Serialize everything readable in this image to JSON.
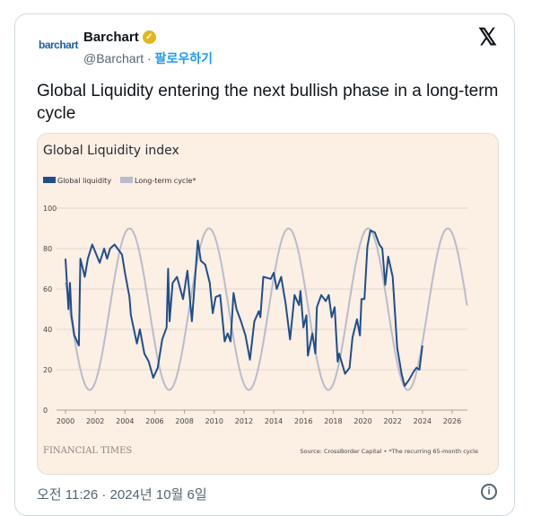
{
  "tweet": {
    "logo_text": "barchart",
    "author_name": "Barchart",
    "handle": "@Barchart",
    "separator": " · ",
    "follow_label": "팔로우하기",
    "x_logo": "𝕏",
    "text": "Global Liquidity entering the next bullish phase in a long-term cycle",
    "timestamp": "오전 11:26 · 2024년 10월 6일",
    "info_icon": "i",
    "verified_icon": "✓"
  },
  "colors": {
    "liquidity": "#1f4e8c",
    "cycle": "#b9bccb",
    "background": "#fcefe4",
    "grid": "#e2d6cc"
  },
  "chart_data": {
    "type": "line",
    "title": "Global Liquidity index",
    "legend": [
      "Global liquidity",
      "Long-term cycle*"
    ],
    "legend_placement": "top-left",
    "brand": "FINANCIAL TIMES",
    "source": "Source: CrossBorder Capital • *The recurring 65-month cycle",
    "xlim": [
      2000,
      2027
    ],
    "ylim": [
      0,
      100
    ],
    "xticks": [
      2000,
      2002,
      2004,
      2006,
      2008,
      2010,
      2012,
      2014,
      2016,
      2018,
      2020,
      2022,
      2024,
      2026
    ],
    "yticks": [
      0,
      20,
      40,
      60,
      80,
      100
    ],
    "grid": true,
    "series": [
      {
        "name": "Global liquidity",
        "x": [
          2000.0,
          2000.2,
          2000.3,
          2000.4,
          2000.6,
          2000.9,
          2001.0,
          2001.3,
          2001.5,
          2001.8,
          2002.3,
          2002.6,
          2002.8,
          2003.0,
          2003.3,
          2003.8,
          2004.0,
          2004.3,
          2004.4,
          2004.8,
          2005.0,
          2005.3,
          2005.6,
          2005.9,
          2006.2,
          2006.5,
          2006.8,
          2006.9,
          2007.0,
          2007.2,
          2007.5,
          2007.9,
          2008.2,
          2008.5,
          2008.9,
          2009.1,
          2009.4,
          2009.7,
          2009.9,
          2010.1,
          2010.4,
          2010.7,
          2010.9,
          2011.1,
          2011.3,
          2011.5,
          2011.8,
          2012.1,
          2012.4,
          2012.7,
          2013.0,
          2013.1,
          2013.3,
          2013.8,
          2014.0,
          2014.2,
          2014.5,
          2014.8,
          2015.1,
          2015.4,
          2015.7,
          2015.8,
          2016.0,
          2016.2,
          2016.3,
          2016.6,
          2016.8,
          2016.9,
          2017.2,
          2017.5,
          2017.7,
          2017.9,
          2018.1,
          2018.3,
          2018.4,
          2018.8,
          2019.1,
          2019.3,
          2019.6,
          2019.8,
          2019.9,
          2020.1,
          2020.3,
          2020.5,
          2020.8,
          2021.1,
          2021.3,
          2021.5,
          2021.7,
          2022.0,
          2022.3,
          2022.6,
          2022.8,
          2023.1,
          2023.4,
          2023.6,
          2023.8,
          2024.0
        ],
        "values": [
          75,
          50,
          63,
          47,
          37,
          32,
          75,
          66,
          75,
          82,
          73,
          80,
          75,
          80,
          82,
          77,
          68,
          56,
          47,
          33,
          40,
          28,
          24,
          16,
          21,
          35,
          41,
          70,
          44,
          63,
          66,
          55,
          69,
          44,
          84,
          74,
          72,
          63,
          48,
          56,
          57,
          34,
          38,
          34,
          58,
          50,
          44,
          37,
          25,
          44,
          49,
          46,
          66,
          65,
          68,
          60,
          66,
          53,
          35,
          57,
          52,
          59,
          41,
          47,
          27,
          38,
          28,
          51,
          57,
          54,
          57,
          46,
          51,
          24,
          28,
          18,
          21,
          36,
          45,
          37,
          55,
          55,
          81,
          89,
          88,
          82,
          80,
          62,
          76,
          66,
          31,
          18,
          12,
          15,
          19,
          21,
          20,
          32
        ]
      },
      {
        "name": "Long-term cycle*",
        "function": "sinusoid",
        "min": 10,
        "max": 90,
        "peak_year": 2004.3,
        "period_years": 5.35,
        "x_range": [
          2000,
          2027
        ]
      }
    ]
  }
}
